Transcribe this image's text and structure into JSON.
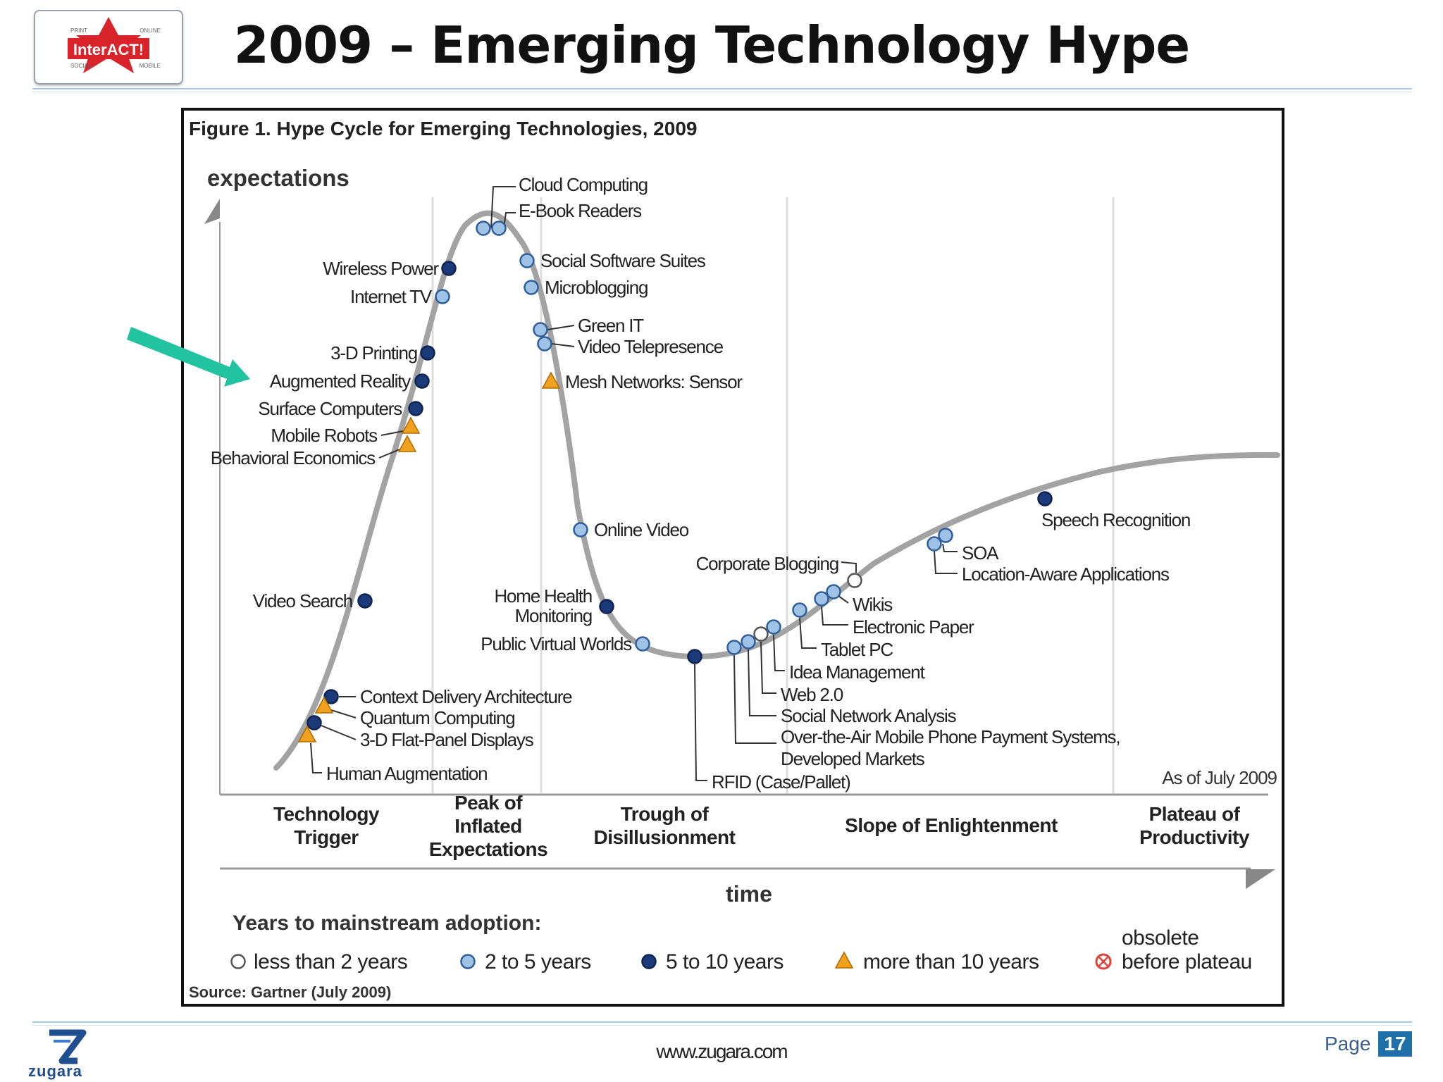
{
  "header": {
    "title": "2009 – Emerging Technology Hype",
    "logo": {
      "top_left": "PRINT",
      "top_right": "ONLINE",
      "name": "InterACT!",
      "bottom_left": "SOCIAL",
      "bottom_right": "MOBILE"
    }
  },
  "figure": {
    "caption": "Figure 1. Hype Cycle for Emerging Technologies, 2009",
    "y_axis_label": "expectations",
    "x_axis_label": "time",
    "as_of": "As of July 2009",
    "phases": [
      {
        "lines": [
          "Technology",
          "Trigger"
        ]
      },
      {
        "lines": [
          "Peak of",
          "Inflated",
          "Expectations"
        ]
      },
      {
        "lines": [
          "Trough of",
          "Disillusionment"
        ]
      },
      {
        "lines": [
          "Slope of Enlightenment"
        ]
      },
      {
        "lines": [
          "Plateau of",
          "Productivity"
        ]
      }
    ],
    "technologies": [
      {
        "lines": [
          "Cloud Computing"
        ],
        "adoption": "2 to 5 years"
      },
      {
        "lines": [
          "E-Book Readers"
        ],
        "adoption": "2 to 5 years"
      },
      {
        "lines": [
          "Social Software Suites"
        ],
        "adoption": "2 to 5 years"
      },
      {
        "lines": [
          "Microblogging"
        ],
        "adoption": "2 to 5 years"
      },
      {
        "lines": [
          "Green IT"
        ],
        "adoption": "2 to 5 years"
      },
      {
        "lines": [
          "Video Telepresence"
        ],
        "adoption": "2 to 5 years"
      },
      {
        "lines": [
          "Mesh Networks: Sensor"
        ],
        "adoption": "more than 10 years"
      },
      {
        "lines": [
          "Wireless Power"
        ],
        "adoption": "5 to 10 years"
      },
      {
        "lines": [
          "Internet TV"
        ],
        "adoption": "2 to 5 years"
      },
      {
        "lines": [
          "3-D Printing"
        ],
        "adoption": "5 to 10 years"
      },
      {
        "lines": [
          "Augmented Reality"
        ],
        "adoption": "5 to 10 years"
      },
      {
        "lines": [
          "Surface Computers"
        ],
        "adoption": "5 to 10 years"
      },
      {
        "lines": [
          "Mobile Robots"
        ],
        "adoption": "more than 10 years"
      },
      {
        "lines": [
          "Behavioral Economics"
        ],
        "adoption": "more than 10 years"
      },
      {
        "lines": [
          "Online Video"
        ],
        "adoption": "2 to 5 years"
      },
      {
        "lines": [
          "Video Search"
        ],
        "adoption": "5 to 10 years"
      },
      {
        "lines": [
          "Home Health",
          "Monitoring"
        ],
        "adoption": "5 to 10 years"
      },
      {
        "lines": [
          "Public Virtual Worlds"
        ],
        "adoption": "2 to 5 years"
      },
      {
        "lines": [
          "Context Delivery Architecture"
        ],
        "adoption": "5 to 10 years"
      },
      {
        "lines": [
          "Quantum Computing"
        ],
        "adoption": "more than 10 years"
      },
      {
        "lines": [
          "3-D Flat-Panel Displays"
        ],
        "adoption": "5 to 10 years"
      },
      {
        "lines": [
          "Human Augmentation"
        ],
        "adoption": "more than 10 years"
      },
      {
        "lines": [
          "RFID (Case/Pallet)"
        ],
        "adoption": "5 to 10 years"
      },
      {
        "lines": [
          "Over-the-Air Mobile Phone Payment Systems,",
          "Developed Markets"
        ],
        "adoption": "2 to 5 years"
      },
      {
        "lines": [
          "Social Network Analysis"
        ],
        "adoption": "2 to 5 years"
      },
      {
        "lines": [
          "Web 2.0"
        ],
        "adoption": "less than 2 years"
      },
      {
        "lines": [
          "Idea Management"
        ],
        "adoption": "2 to 5 years"
      },
      {
        "lines": [
          "Tablet PC"
        ],
        "adoption": "2 to 5 years"
      },
      {
        "lines": [
          "Electronic Paper"
        ],
        "adoption": "2 to 5 years"
      },
      {
        "lines": [
          "Wikis"
        ],
        "adoption": "2 to 5 years"
      },
      {
        "lines": [
          "Corporate Blogging"
        ],
        "adoption": "less than 2 years"
      },
      {
        "lines": [
          "SOA"
        ],
        "adoption": "2 to 5 years"
      },
      {
        "lines": [
          "Location-Aware Applications"
        ],
        "adoption": "2 to 5 years"
      },
      {
        "lines": [
          "Speech Recognition"
        ],
        "adoption": "5 to 10 years"
      }
    ],
    "highlighted_technology": "Augmented Reality",
    "legend": {
      "title": "Years to mainstream adoption:",
      "items": [
        {
          "label": "less than 2 years",
          "symbol": "open-circle"
        },
        {
          "label": "2 to 5 years",
          "symbol": "light-blue-circle"
        },
        {
          "label": "5 to 10 years",
          "symbol": "dark-blue-circle"
        },
        {
          "label": "more than 10 years",
          "symbol": "orange-triangle"
        },
        {
          "label_lines": [
            "obsolete",
            "before plateau"
          ],
          "symbol": "crossed-red-circle"
        }
      ]
    },
    "source": "Source: Gartner (July 2009)"
  },
  "footer": {
    "url": "www.zugara.com",
    "brand": "zugara",
    "page_label": "Page",
    "page_number": "17"
  },
  "colors": {
    "curve": "#a3a3a3",
    "dot_dark": "#1b3a7a",
    "dot_light": "#9ec3e6",
    "triangle": "#f0a11d",
    "obsolete": "#e0423a",
    "arrow": "#22c3a0",
    "logo_red": "#d8232a",
    "rule_blue": "#a9c6e3"
  }
}
